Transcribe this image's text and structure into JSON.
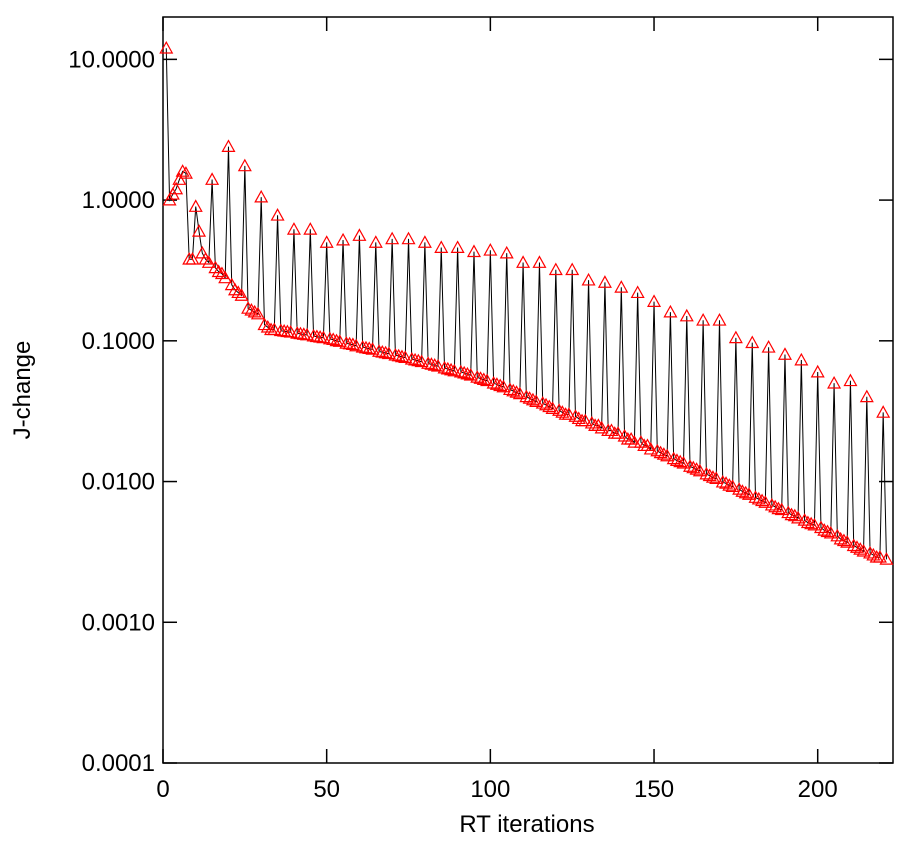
{
  "chart_data": {
    "type": "line",
    "x_label": "RT iterations",
    "y_label": "J-change",
    "log_y": true,
    "line_color": "#000000",
    "marker_color": "#ff0000",
    "marker": "triangle",
    "xlim": [
      0,
      223
    ],
    "xticks": [
      0,
      50,
      100,
      150,
      200
    ],
    "ylim": [
      0.0001,
      20
    ],
    "yticks": [
      {
        "value": 0.0001,
        "label": "0.0001"
      },
      {
        "value": 0.001,
        "label": "0.0010"
      },
      {
        "value": 0.01,
        "label": "0.0100"
      },
      {
        "value": 0.1,
        "label": "0.1000"
      },
      {
        "value": 1,
        "label": "1.0000"
      },
      {
        "value": 10,
        "label": "10.0000"
      }
    ],
    "x": [
      1,
      2,
      3,
      4,
      5,
      6,
      7,
      8,
      9,
      10,
      11,
      12,
      13,
      14,
      15,
      16,
      17,
      18,
      19,
      20,
      21,
      22,
      23,
      24,
      25,
      26,
      27,
      28,
      29,
      30,
      31,
      32,
      33,
      34,
      35,
      36,
      37,
      38,
      39,
      40,
      41,
      42,
      43,
      44,
      45,
      46,
      47,
      48,
      49,
      50,
      51,
      52,
      53,
      54,
      55,
      56,
      57,
      58,
      59,
      60,
      61,
      62,
      63,
      64,
      65,
      66,
      67,
      68,
      69,
      70,
      71,
      72,
      73,
      74,
      75,
      76,
      77,
      78,
      79,
      80,
      81,
      82,
      83,
      84,
      85,
      86,
      87,
      88,
      89,
      90,
      91,
      92,
      93,
      94,
      95,
      96,
      97,
      98,
      99,
      100,
      101,
      102,
      103,
      104,
      105,
      106,
      107,
      108,
      109,
      110,
      111,
      112,
      113,
      114,
      115,
      116,
      117,
      118,
      119,
      120,
      121,
      122,
      123,
      124,
      125,
      126,
      127,
      128,
      129,
      130,
      131,
      132,
      133,
      134,
      135,
      136,
      137,
      138,
      139,
      140,
      141,
      142,
      143,
      144,
      145,
      146,
      147,
      148,
      149,
      150,
      151,
      152,
      153,
      154,
      155,
      156,
      157,
      158,
      159,
      160,
      161,
      162,
      163,
      164,
      165,
      166,
      167,
      168,
      169,
      170,
      171,
      172,
      173,
      174,
      175,
      176,
      177,
      178,
      179,
      180,
      181,
      182,
      183,
      184,
      185,
      186,
      187,
      188,
      189,
      190,
      191,
      192,
      193,
      194,
      195,
      196,
      197,
      198,
      199,
      200,
      201,
      202,
      203,
      204,
      205,
      206,
      207,
      208,
      209,
      210,
      211,
      212,
      213,
      214,
      215,
      216,
      217,
      218,
      219,
      220,
      221
    ],
    "values": [
      12,
      1.0,
      1.1,
      1.2,
      1.4,
      1.6,
      1.55,
      0.38,
      0.38,
      0.9,
      0.6,
      0.42,
      0.38,
      0.36,
      1.4,
      0.33,
      0.31,
      0.3,
      0.28,
      2.4,
      0.25,
      0.23,
      0.22,
      0.21,
      1.75,
      0.17,
      0.165,
      0.16,
      0.155,
      1.05,
      0.13,
      0.125,
      0.12,
      0.12,
      0.78,
      0.118,
      0.117,
      0.116,
      0.115,
      0.62,
      0.113,
      0.112,
      0.111,
      0.11,
      0.62,
      0.108,
      0.107,
      0.106,
      0.105,
      0.5,
      0.103,
      0.102,
      0.1,
      0.099,
      0.52,
      0.096,
      0.095,
      0.094,
      0.092,
      0.56,
      0.09,
      0.089,
      0.088,
      0.087,
      0.5,
      0.084,
      0.083,
      0.082,
      0.081,
      0.53,
      0.079,
      0.078,
      0.077,
      0.076,
      0.53,
      0.074,
      0.073,
      0.072,
      0.071,
      0.5,
      0.069,
      0.068,
      0.067,
      0.066,
      0.46,
      0.064,
      0.063,
      0.062,
      0.061,
      0.46,
      0.06,
      0.059,
      0.058,
      0.057,
      0.43,
      0.055,
      0.054,
      0.053,
      0.052,
      0.44,
      0.05,
      0.049,
      0.048,
      0.047,
      0.42,
      0.045,
      0.044,
      0.043,
      0.042,
      0.36,
      0.04,
      0.039,
      0.038,
      0.037,
      0.36,
      0.036,
      0.035,
      0.034,
      0.033,
      0.32,
      0.032,
      0.031,
      0.03,
      0.03,
      0.32,
      0.029,
      0.028,
      0.027,
      0.027,
      0.27,
      0.026,
      0.025,
      0.025,
      0.024,
      0.26,
      0.023,
      0.023,
      0.022,
      0.022,
      0.24,
      0.021,
      0.02,
      0.02,
      0.019,
      0.22,
      0.019,
      0.018,
      0.018,
      0.017,
      0.19,
      0.0165,
      0.016,
      0.0156,
      0.0152,
      0.16,
      0.0145,
      0.0141,
      0.0138,
      0.0135,
      0.15,
      0.0128,
      0.0125,
      0.0122,
      0.0119,
      0.14,
      0.0113,
      0.011,
      0.0107,
      0.0105,
      0.14,
      0.0099,
      0.0097,
      0.0094,
      0.0092,
      0.105,
      0.0088,
      0.0085,
      0.0083,
      0.0081,
      0.097,
      0.0077,
      0.0075,
      0.0073,
      0.0071,
      0.09,
      0.0068,
      0.0066,
      0.0064,
      0.0063,
      0.08,
      0.006,
      0.0058,
      0.0057,
      0.0055,
      0.073,
      0.0053,
      0.0051,
      0.005,
      0.0049,
      0.06,
      0.0047,
      0.0045,
      0.0044,
      0.0043,
      0.05,
      0.0041,
      0.0039,
      0.0038,
      0.0037,
      0.052,
      0.0035,
      0.0034,
      0.0033,
      0.0032,
      0.04,
      0.0031,
      0.003,
      0.0029,
      0.0029,
      0.031,
      0.0028
    ]
  }
}
